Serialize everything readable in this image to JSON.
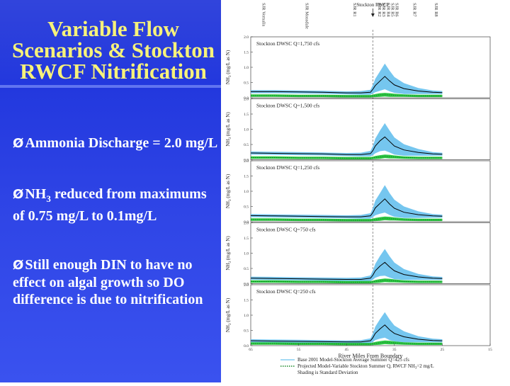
{
  "slide": {
    "title": "Variable Flow Scenarios & Stockton RWCF Nitrification",
    "bullets": [
      {
        "mark": "Ø",
        "text": "Ammonia Discharge = 2.0 mg/L"
      },
      {
        "mark": "Ø",
        "text_pre": "NH",
        "sub": "3",
        "text_post": " reduced from maximums of 0.75 mg/L to 0.1mg/L"
      },
      {
        "mark": "Ø",
        "text": "Still enough DIN to have no effect on algal growth so DO difference is due to nitrification"
      }
    ]
  },
  "chart_data": {
    "type": "line",
    "xlabel": "River Miles From Boundary",
    "x_ticks": [
      "65",
      "55",
      "45",
      "35",
      "25",
      "15"
    ],
    "xlim": [
      65,
      15
    ],
    "ylim": [
      0,
      2.0
    ],
    "y_ticks": [
      "0.0",
      "0.5",
      "1.0",
      "1.5",
      "2.0"
    ],
    "ylabel_pre": "NH",
    "ylabel_sub": "3",
    "ylabel_post": " (mg/L as N)",
    "top_labels": [
      "SJR Vernalis",
      "SJR Mossdale",
      "SJR R1",
      "SJR R2",
      "SJR R3",
      "SJR R4",
      "SJR R5",
      "SJR R6",
      "SJR R7",
      "SJR R8"
    ],
    "top_label_x": [
      63,
      54,
      44,
      38.8,
      37.9,
      37.0,
      36.1,
      35.2,
      31.5,
      27
    ],
    "outfall_label": "Stockton RWCF",
    "outfall_x": 39.5,
    "x": [
      65,
      60,
      55,
      50,
      45,
      42,
      40,
      39.5,
      39,
      38,
      37,
      36,
      35,
      33,
      30,
      27,
      25
    ],
    "panels": [
      {
        "title": "Stockton DWSC Q=1,750 cfs",
        "base_mean": [
          0.2,
          0.2,
          0.19,
          0.18,
          0.16,
          0.16,
          0.18,
          0.28,
          0.4,
          0.55,
          0.7,
          0.55,
          0.42,
          0.3,
          0.22,
          0.18,
          0.17
        ],
        "base_sd": [
          0.05,
          0.05,
          0.05,
          0.05,
          0.05,
          0.06,
          0.08,
          0.14,
          0.22,
          0.32,
          0.42,
          0.34,
          0.26,
          0.18,
          0.1,
          0.06,
          0.05
        ],
        "proj_mean": [
          0.07,
          0.07,
          0.06,
          0.06,
          0.05,
          0.05,
          0.05,
          0.06,
          0.07,
          0.09,
          0.1,
          0.09,
          0.08,
          0.07,
          0.06,
          0.06,
          0.06
        ],
        "proj_sd": [
          0.04,
          0.04,
          0.04,
          0.04,
          0.04,
          0.04,
          0.04,
          0.04,
          0.05,
          0.06,
          0.06,
          0.06,
          0.05,
          0.04,
          0.04,
          0.04,
          0.04
        ]
      },
      {
        "title": "Stockton DWSC Q=1,500 cfs",
        "base_mean": [
          0.22,
          0.21,
          0.2,
          0.19,
          0.17,
          0.17,
          0.2,
          0.3,
          0.45,
          0.62,
          0.75,
          0.6,
          0.45,
          0.32,
          0.24,
          0.19,
          0.18
        ],
        "base_sd": [
          0.05,
          0.05,
          0.05,
          0.05,
          0.05,
          0.06,
          0.09,
          0.15,
          0.24,
          0.34,
          0.45,
          0.36,
          0.28,
          0.19,
          0.11,
          0.06,
          0.05
        ],
        "proj_mean": [
          0.07,
          0.07,
          0.06,
          0.06,
          0.05,
          0.05,
          0.05,
          0.06,
          0.07,
          0.09,
          0.11,
          0.1,
          0.09,
          0.07,
          0.06,
          0.06,
          0.06
        ],
        "proj_sd": [
          0.04,
          0.04,
          0.04,
          0.04,
          0.04,
          0.04,
          0.04,
          0.04,
          0.05,
          0.06,
          0.06,
          0.06,
          0.05,
          0.04,
          0.04,
          0.04,
          0.04
        ]
      },
      {
        "title": "Stockton DWSC Q=1,250 cfs",
        "base_mean": [
          0.2,
          0.19,
          0.18,
          0.17,
          0.16,
          0.16,
          0.19,
          0.3,
          0.45,
          0.6,
          0.75,
          0.58,
          0.44,
          0.31,
          0.23,
          0.19,
          0.18
        ],
        "base_sd": [
          0.05,
          0.05,
          0.05,
          0.05,
          0.05,
          0.06,
          0.09,
          0.15,
          0.24,
          0.34,
          0.45,
          0.36,
          0.28,
          0.19,
          0.11,
          0.06,
          0.05
        ],
        "proj_mean": [
          0.07,
          0.07,
          0.06,
          0.06,
          0.05,
          0.05,
          0.05,
          0.06,
          0.07,
          0.09,
          0.11,
          0.1,
          0.09,
          0.07,
          0.06,
          0.06,
          0.06
        ],
        "proj_sd": [
          0.04,
          0.04,
          0.04,
          0.04,
          0.04,
          0.04,
          0.04,
          0.04,
          0.05,
          0.06,
          0.06,
          0.06,
          0.05,
          0.04,
          0.04,
          0.04,
          0.04
        ]
      },
      {
        "title": "Stockton DWSC Q=750 cfs",
        "base_mean": [
          0.18,
          0.17,
          0.16,
          0.15,
          0.14,
          0.14,
          0.18,
          0.28,
          0.42,
          0.58,
          0.7,
          0.55,
          0.42,
          0.3,
          0.22,
          0.18,
          0.17
        ],
        "base_sd": [
          0.05,
          0.05,
          0.05,
          0.05,
          0.05,
          0.06,
          0.09,
          0.15,
          0.23,
          0.33,
          0.44,
          0.35,
          0.27,
          0.18,
          0.1,
          0.06,
          0.05
        ],
        "proj_mean": [
          0.07,
          0.07,
          0.06,
          0.06,
          0.05,
          0.05,
          0.05,
          0.06,
          0.07,
          0.09,
          0.11,
          0.1,
          0.09,
          0.07,
          0.06,
          0.06,
          0.06
        ],
        "proj_sd": [
          0.04,
          0.04,
          0.04,
          0.04,
          0.04,
          0.04,
          0.04,
          0.04,
          0.05,
          0.06,
          0.06,
          0.06,
          0.05,
          0.04,
          0.04,
          0.04,
          0.04
        ]
      },
      {
        "title": "Stockton DWSC Q=250 cfs",
        "base_mean": [
          0.16,
          0.15,
          0.14,
          0.13,
          0.12,
          0.12,
          0.16,
          0.26,
          0.4,
          0.55,
          0.68,
          0.52,
          0.4,
          0.29,
          0.21,
          0.17,
          0.16
        ],
        "base_sd": [
          0.05,
          0.05,
          0.05,
          0.05,
          0.05,
          0.06,
          0.08,
          0.14,
          0.22,
          0.32,
          0.42,
          0.34,
          0.26,
          0.18,
          0.1,
          0.06,
          0.05
        ],
        "proj_mean": [
          0.07,
          0.07,
          0.06,
          0.06,
          0.05,
          0.05,
          0.05,
          0.06,
          0.07,
          0.09,
          0.11,
          0.1,
          0.09,
          0.07,
          0.06,
          0.06,
          0.06
        ],
        "proj_sd": [
          0.04,
          0.04,
          0.04,
          0.04,
          0.04,
          0.04,
          0.04,
          0.04,
          0.05,
          0.06,
          0.06,
          0.06,
          0.05,
          0.04,
          0.04,
          0.04,
          0.04
        ]
      }
    ],
    "legend": [
      {
        "label": "Base 2001 Model-Stockton Average Summer Q=425 cfs",
        "style": "solid"
      },
      {
        "label_pre": "Projected Model-Variable Stockton Summer Q, RWCF NH",
        "label_sub": "3",
        "label_post": "=2 mg/L",
        "style": "dotted"
      },
      {
        "label": "Shading is Standard Deviation",
        "style": "none"
      }
    ],
    "colors": {
      "base_line": "#000000",
      "base_band": "#6ec3ee",
      "proj_line": "#1a8a2a",
      "proj_band": "#22c43a",
      "outfall_line": "#888888"
    }
  }
}
